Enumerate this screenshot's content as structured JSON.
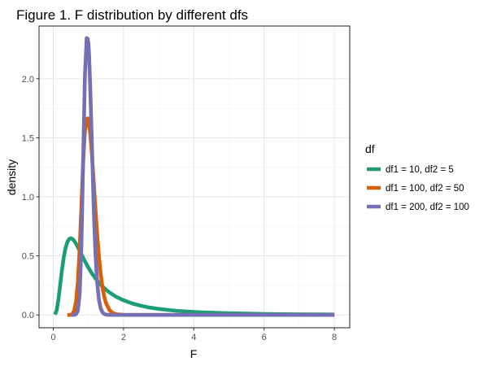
{
  "chart_data": {
    "type": "line",
    "title": "Figure 1. F distribution by different dfs",
    "xlabel": "F",
    "ylabel": "density",
    "xlim": [
      0,
      8
    ],
    "ylim": [
      0,
      2.35
    ],
    "x_ticks": [
      0,
      2,
      4,
      6,
      8
    ],
    "x_tick_labels": [
      "0",
      "2",
      "4",
      "6",
      "8"
    ],
    "y_ticks": [
      0,
      0.5,
      1.0,
      1.5,
      2.0
    ],
    "y_tick_labels": [
      "0.0",
      "0.5",
      "1.0",
      "1.5",
      "2.0"
    ],
    "grid": true,
    "legend": {
      "title": "df",
      "placement": "right"
    },
    "series": [
      {
        "name": "df1 = 10, df2 = 5",
        "color": "#1b9e77",
        "x": [
          0.05,
          0.1,
          0.15,
          0.2,
          0.25,
          0.3,
          0.35,
          0.4,
          0.45,
          0.5,
          0.55,
          0.6,
          0.65,
          0.7,
          0.75,
          0.8,
          0.85,
          0.9,
          0.95,
          1.0,
          1.1,
          1.2,
          1.3,
          1.4,
          1.5,
          1.6,
          1.8,
          2.0,
          2.25,
          2.5,
          2.75,
          3.0,
          3.5,
          4.0,
          4.5,
          5.0,
          5.5,
          6.0,
          6.5,
          7.0,
          7.5,
          8.0
        ],
        "y": [
          0.003,
          0.043,
          0.138,
          0.263,
          0.387,
          0.49,
          0.567,
          0.616,
          0.642,
          0.649,
          0.642,
          0.625,
          0.601,
          0.574,
          0.544,
          0.514,
          0.484,
          0.455,
          0.427,
          0.4,
          0.351,
          0.309,
          0.272,
          0.241,
          0.214,
          0.19,
          0.152,
          0.124,
          0.097,
          0.077,
          0.062,
          0.051,
          0.035,
          0.025,
          0.019,
          0.014,
          0.011,
          0.008,
          0.0065,
          0.0053,
          0.0043,
          0.0036
        ]
      },
      {
        "name": "df1 = 100, df2 = 50",
        "color": "#d95f02",
        "x": [
          0.4,
          0.45,
          0.5,
          0.55,
          0.6,
          0.65,
          0.7,
          0.75,
          0.8,
          0.85,
          0.9,
          0.95,
          0.98,
          1.0,
          1.05,
          1.1,
          1.15,
          1.2,
          1.25,
          1.3,
          1.35,
          1.4,
          1.45,
          1.5,
          1.6,
          1.7,
          1.8,
          2.0,
          2.2,
          2.5,
          3.0,
          4.0,
          6.0,
          8.0
        ],
        "y": [
          0.0,
          0.0,
          0.002,
          0.011,
          0.04,
          0.118,
          0.281,
          0.553,
          0.917,
          1.292,
          1.557,
          1.654,
          1.664,
          1.648,
          1.545,
          1.361,
          1.132,
          0.895,
          0.677,
          0.493,
          0.346,
          0.235,
          0.156,
          0.101,
          0.04,
          0.015,
          0.005,
          0.001,
          0.0,
          0.0,
          0.0,
          0.0,
          0.0,
          0.0
        ]
      },
      {
        "name": "df1 = 200, df2 = 100",
        "color": "#7570b3",
        "x": [
          0.5,
          0.55,
          0.6,
          0.65,
          0.7,
          0.75,
          0.8,
          0.85,
          0.9,
          0.95,
          0.98,
          1.0,
          1.02,
          1.05,
          1.1,
          1.15,
          1.2,
          1.25,
          1.3,
          1.35,
          1.4,
          1.45,
          1.5,
          1.6,
          1.7,
          1.8,
          2.0,
          2.5,
          3.0,
          4.0,
          6.0,
          8.0
        ],
        "y": [
          0.0,
          0.0,
          0.001,
          0.006,
          0.035,
          0.17,
          0.574,
          1.297,
          2.03,
          2.344,
          2.339,
          2.3,
          2.199,
          1.942,
          1.442,
          0.91,
          0.521,
          0.271,
          0.128,
          0.055,
          0.022,
          0.008,
          0.003,
          0.0,
          0.0,
          0.0,
          0.0,
          0.0,
          0.0,
          0.0,
          0.0,
          0.0
        ]
      }
    ]
  }
}
